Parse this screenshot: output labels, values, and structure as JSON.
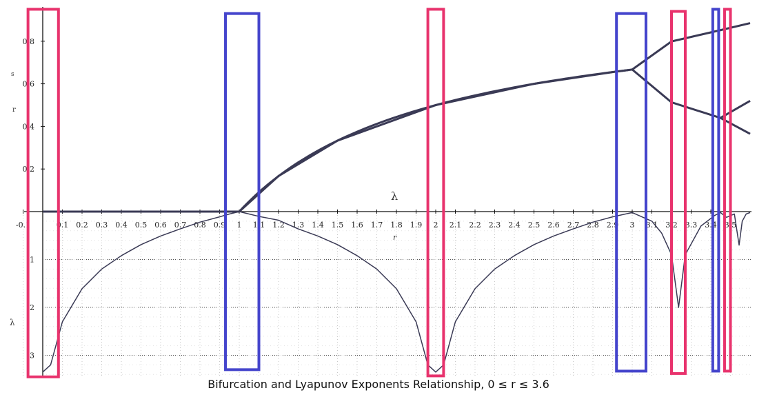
{
  "chart_data": {
    "type": "line",
    "title": "Bifurcation and Lyapunov Exponents Relationship, 0 ≤ r ≤ 3.6",
    "xlabel": "r",
    "ylabel_top": "r",
    "ylabel_top_small": "s",
    "ylabel_bottom": "λ",
    "lambda_label": "λ",
    "xlim": [
      -0.1,
      3.6
    ],
    "ylim": [
      -3.45,
      0.95
    ],
    "x_ticks": [
      "-0.1",
      "0.1",
      "0.2",
      "0.3",
      "0.4",
      "0.5",
      "0.6",
      "0.7",
      "0.8",
      "0.9",
      "1",
      "1.1",
      "1.2",
      "1.3",
      "1.4",
      "1.5",
      "1.6",
      "1.7",
      "1.8",
      "1.9",
      "2",
      "2.1",
      "2.2",
      "2.3",
      "2.4",
      "2.5",
      "2.6",
      "2.7",
      "2.8",
      "2.9",
      "3",
      "3.1",
      "3.2",
      "3.3",
      "3.4",
      "3.5"
    ],
    "x_tick_values": [
      -0.1,
      0.1,
      0.2,
      0.3,
      0.4,
      0.5,
      0.6,
      0.7,
      0.8,
      0.9,
      1,
      1.1,
      1.2,
      1.3,
      1.4,
      1.5,
      1.6,
      1.7,
      1.8,
      1.9,
      2,
      2.1,
      2.2,
      2.3,
      2.4,
      2.5,
      2.6,
      2.7,
      2.8,
      2.9,
      3,
      3.1,
      3.2,
      3.3,
      3.4,
      3.5
    ],
    "y_ticks_top": [
      0.2,
      0.4,
      0.6,
      0.8
    ],
    "y_ticks_bottom": [
      -1,
      -2,
      -3
    ],
    "series": [
      {
        "kind": "bifurcation",
        "x": [
          0,
          0.5,
          1,
          1.2,
          1.5,
          2,
          2.5,
          2.9,
          3,
          3.2,
          3.449,
          3.6
        ],
        "branches_y": [
          [
            0,
            0,
            0,
            0.167,
            0.333,
            0.5,
            0.6,
            0.655,
            0.667
          ],
          [
            0.667,
            0.799,
            0.852,
            0.885
          ],
          [
            0.667,
            0.513,
            0.44,
            0.365
          ],
          [
            0.44,
            0.52
          ]
        ]
      },
      {
        "kind": "lyapunov",
        "x": [
          0.0,
          0.04,
          0.1,
          0.2,
          0.3,
          0.4,
          0.5,
          0.6,
          0.7,
          0.8,
          0.9,
          0.95,
          1.0,
          1.05,
          1.1,
          1.2,
          1.3,
          1.4,
          1.5,
          1.6,
          1.7,
          1.8,
          1.9,
          1.96,
          2.0,
          2.04,
          2.1,
          2.2,
          2.3,
          2.4,
          2.5,
          2.6,
          2.7,
          2.8,
          2.9,
          3.0,
          3.1,
          3.15,
          3.2,
          3.236,
          3.27,
          3.35,
          3.42,
          3.449,
          3.48,
          3.52,
          3.544,
          3.56,
          3.58,
          3.6
        ],
        "y": [
          -3.35,
          -3.2,
          -2.3,
          -1.61,
          -1.2,
          -0.92,
          -0.69,
          -0.51,
          -0.36,
          -0.22,
          -0.11,
          -0.05,
          0.0,
          -0.05,
          -0.1,
          -0.18,
          -0.36,
          -0.51,
          -0.69,
          -0.92,
          -1.2,
          -1.61,
          -2.3,
          -3.2,
          -3.35,
          -3.2,
          -2.3,
          -1.61,
          -1.2,
          -0.92,
          -0.69,
          -0.51,
          -0.36,
          -0.22,
          -0.11,
          -0.02,
          -0.2,
          -0.45,
          -0.9,
          -2.0,
          -0.9,
          -0.3,
          -0.08,
          -0.02,
          -0.12,
          -0.05,
          -0.7,
          -0.2,
          -0.05,
          -0.02
        ]
      }
    ],
    "highlight_boxes": [
      {
        "color": "#e8336d",
        "x_range": [
          -0.075,
          0.08
        ],
        "y_range": [
          -3.45,
          0.95
        ]
      },
      {
        "color": "#4444cc",
        "x_range": [
          0.93,
          1.1
        ],
        "y_range": [
          -3.3,
          0.93
        ]
      },
      {
        "color": "#e8336d",
        "x_range": [
          1.96,
          2.04
        ],
        "y_range": [
          -3.43,
          0.95
        ]
      },
      {
        "color": "#4444cc",
        "x_range": [
          2.92,
          3.07
        ],
        "y_range": [
          -3.33,
          0.93
        ]
      },
      {
        "color": "#e8336d",
        "x_range": [
          3.2,
          3.27
        ],
        "y_range": [
          -3.38,
          0.94
        ]
      },
      {
        "color": "#4444cc",
        "x_range": [
          3.41,
          3.44
        ],
        "y_range": [
          -3.33,
          0.95
        ]
      },
      {
        "color": "#e8336d",
        "x_range": [
          3.47,
          3.5
        ],
        "y_range": [
          -3.33,
          0.95
        ]
      }
    ],
    "grid": "dotted (lower panel)",
    "colors": {
      "curve": "#3a3a55",
      "pink": "#e8336d",
      "blue": "#4444cc",
      "grid": "#c8c8c8"
    }
  }
}
